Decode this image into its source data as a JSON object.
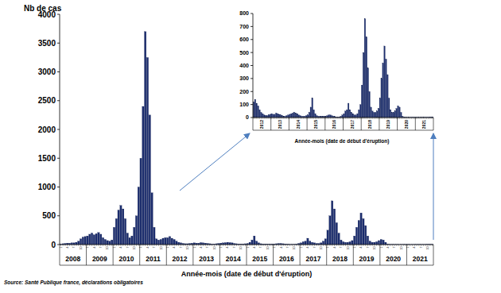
{
  "chart_data": [
    {
      "type": "bar",
      "y_label": "Nb de cas",
      "x_label": "Année-mois (date de début d'éruption)",
      "source": "Source: Santé Publique france, déclarations obligatoires",
      "color": "#1c2d6e",
      "ylim": [
        0,
        4000
      ],
      "yticks": [
        0,
        500,
        1000,
        1500,
        2000,
        2500,
        3000,
        3500,
        4000
      ],
      "year_labels": [
        "2008",
        "2009",
        "2010",
        "2011",
        "2012",
        "2013",
        "2014",
        "2015",
        "2016",
        "2017",
        "2018",
        "2019",
        "2020",
        "2021"
      ],
      "categories": [
        "1",
        null,
        null,
        "4",
        null,
        null,
        "7",
        null,
        null,
        "10",
        null,
        null,
        "1",
        null,
        null,
        "4",
        null,
        null,
        "7",
        null,
        null,
        "10",
        null,
        null,
        "1",
        null,
        null,
        "4",
        null,
        null,
        "7",
        null,
        null,
        "10",
        null,
        null,
        "1",
        null,
        null,
        "4",
        null,
        null,
        "7",
        null,
        null,
        "10",
        null,
        null,
        "1",
        null,
        null,
        "4",
        null,
        null,
        "7",
        null,
        null,
        "10",
        null,
        null,
        "1",
        null,
        null,
        "4",
        null,
        null,
        "7",
        null,
        null,
        "10",
        null,
        null,
        "1",
        null,
        null,
        "4",
        null,
        null,
        "7",
        null,
        null,
        "10",
        null,
        null,
        "1",
        null,
        null,
        "4",
        null,
        null,
        "7",
        null,
        null,
        "10",
        null,
        null,
        "1",
        null,
        null,
        "4",
        null,
        null,
        "7",
        null,
        null,
        "10",
        null,
        null,
        "1",
        null,
        null,
        "4",
        null,
        null,
        "7",
        null,
        null,
        "10",
        null,
        null,
        "1",
        null,
        null,
        "4",
        null,
        null,
        "7",
        null,
        null,
        "10",
        null,
        null,
        "1",
        null,
        null,
        "4",
        null,
        null,
        "7",
        null,
        null,
        "10",
        null,
        null,
        "1",
        null,
        null,
        "4",
        null,
        null,
        "7",
        null,
        null,
        "10",
        null,
        null,
        "1",
        null,
        null,
        "4",
        null,
        null,
        "7",
        null,
        null,
        "10",
        null,
        null
      ],
      "values": [
        10,
        15,
        20,
        25,
        25,
        30,
        30,
        40,
        60,
        100,
        130,
        140,
        150,
        180,
        200,
        170,
        190,
        210,
        180,
        120,
        90,
        70,
        60,
        80,
        300,
        450,
        600,
        680,
        620,
        450,
        200,
        120,
        150,
        300,
        500,
        1000,
        1500,
        2400,
        3700,
        3250,
        2250,
        900,
        300,
        100,
        80,
        90,
        110,
        120,
        120,
        140,
        110,
        90,
        60,
        40,
        30,
        20,
        15,
        15,
        20,
        25,
        30,
        25,
        25,
        35,
        30,
        25,
        20,
        15,
        10,
        10,
        15,
        20,
        25,
        30,
        35,
        40,
        35,
        30,
        20,
        15,
        10,
        10,
        10,
        15,
        20,
        40,
        80,
        150,
        60,
        30,
        15,
        10,
        10,
        10,
        10,
        10,
        10,
        15,
        20,
        20,
        15,
        10,
        8,
        5,
        5,
        5,
        10,
        20,
        30,
        50,
        60,
        110,
        60,
        40,
        30,
        20,
        20,
        30,
        60,
        100,
        250,
        500,
        760,
        620,
        380,
        200,
        80,
        50,
        40,
        40,
        50,
        70,
        150,
        300,
        420,
        550,
        450,
        330,
        150,
        60,
        40,
        40,
        50,
        70,
        90,
        80,
        40,
        10,
        5,
        3,
        2,
        2,
        2,
        3,
        3,
        3,
        3,
        2,
        2,
        2,
        2,
        2,
        3,
        3,
        3,
        5,
        5,
        5
      ]
    },
    {
      "type": "bar",
      "x_label": "Année-mois (date de début d'éruption)",
      "color": "#1c2d6e",
      "ylim": [
        0,
        800
      ],
      "yticks": [
        0,
        100,
        200,
        300,
        400,
        500,
        600,
        700,
        800
      ],
      "year_labels": [
        "2012",
        "2013",
        "2014",
        "2015",
        "2016",
        "2017",
        "2018",
        "2019",
        "2020",
        "2021"
      ],
      "categories": [
        null,
        null,
        null,
        null,
        null,
        null,
        null,
        null,
        null,
        null,
        null,
        null,
        null,
        null,
        null,
        null,
        null,
        null,
        null,
        null,
        null,
        null,
        null,
        null,
        null,
        null,
        null,
        null,
        null,
        null,
        null,
        null,
        null,
        null,
        null,
        null,
        null,
        null,
        null,
        null,
        null,
        null,
        null,
        null,
        null,
        null,
        null,
        null,
        null,
        null,
        null,
        null,
        null,
        null,
        null,
        null,
        null,
        null,
        null,
        null,
        null,
        null,
        null,
        null,
        null,
        null,
        null,
        null,
        null,
        null,
        null,
        null,
        null,
        null,
        null,
        null,
        null,
        null,
        null,
        null,
        null,
        null,
        null,
        null,
        null,
        null,
        null,
        null,
        null,
        null,
        null,
        null,
        null,
        null,
        null,
        null,
        null,
        null,
        null,
        null,
        null,
        null,
        null,
        null,
        null,
        null,
        null,
        null,
        null,
        null,
        null,
        null,
        null,
        null,
        null,
        null,
        null,
        null,
        null,
        null
      ],
      "values": [
        120,
        140,
        110,
        90,
        60,
        40,
        30,
        20,
        15,
        15,
        20,
        25,
        30,
        25,
        25,
        35,
        30,
        25,
        20,
        15,
        10,
        10,
        15,
        20,
        25,
        30,
        35,
        40,
        35,
        30,
        20,
        15,
        10,
        10,
        10,
        15,
        20,
        40,
        80,
        150,
        60,
        30,
        15,
        10,
        10,
        10,
        10,
        10,
        10,
        15,
        20,
        20,
        15,
        10,
        8,
        5,
        5,
        5,
        10,
        20,
        30,
        50,
        60,
        110,
        60,
        40,
        30,
        20,
        20,
        30,
        60,
        100,
        250,
        500,
        760,
        620,
        380,
        200,
        80,
        50,
        40,
        40,
        50,
        70,
        150,
        300,
        420,
        550,
        450,
        330,
        150,
        60,
        40,
        40,
        50,
        70,
        90,
        80,
        40,
        10,
        5,
        3,
        2,
        2,
        2,
        3,
        3,
        3,
        3,
        2,
        2,
        2,
        2,
        2,
        3,
        3,
        3,
        5,
        5,
        5
      ]
    }
  ]
}
